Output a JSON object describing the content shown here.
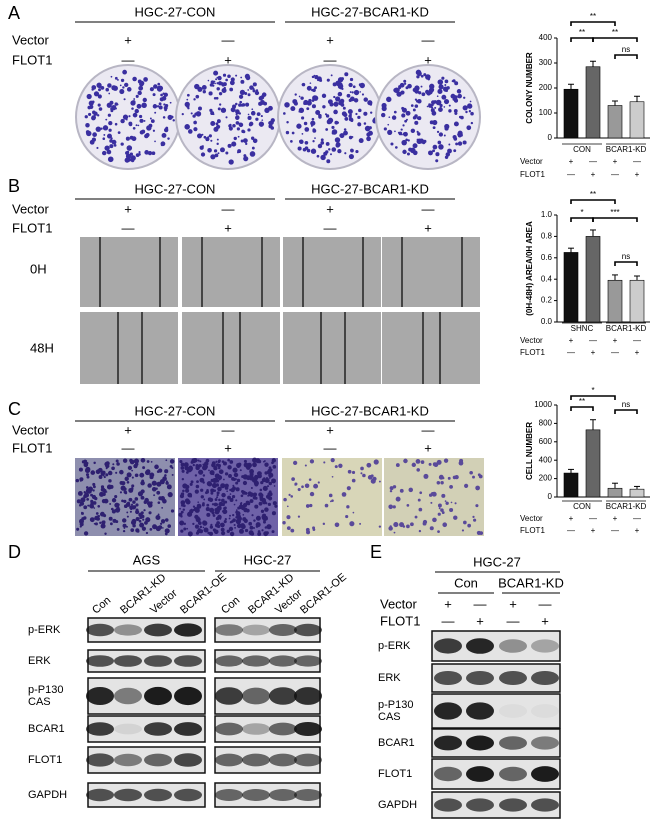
{
  "panel_A": {
    "label": "A",
    "groups": [
      "HGC-27-CON",
      "HGC-27-BCAR1-KD"
    ],
    "conditions": [
      {
        "name": "Vector",
        "marks": [
          "+",
          "—",
          "+",
          "—"
        ]
      },
      {
        "name": "FLOT1",
        "marks": [
          "—",
          "+",
          "—",
          "+"
        ]
      }
    ]
  },
  "panel_B": {
    "label": "B",
    "groups": [
      "HGC-27-CON",
      "HGC-27-BCAR1-KD"
    ],
    "conditions": [
      {
        "name": "Vector",
        "marks": [
          "+",
          "—",
          "+",
          "—"
        ]
      },
      {
        "name": "FLOT1",
        "marks": [
          "—",
          "+",
          "—",
          "+"
        ]
      }
    ],
    "timepoints": [
      "0H",
      "48H"
    ]
  },
  "panel_C": {
    "label": "C",
    "groups": [
      "HGC-27-CON",
      "HGC-27-BCAR1-KD"
    ],
    "conditions": [
      {
        "name": "Vector",
        "marks": [
          "+",
          "—",
          "+",
          "—"
        ]
      },
      {
        "name": "FLOT1",
        "marks": [
          "—",
          "+",
          "—",
          "+"
        ]
      }
    ]
  },
  "panel_D": {
    "label": "D",
    "blots": [
      {
        "title": "AGS",
        "lanes": [
          "Con",
          "BCAR1-KD",
          "Vector",
          "BCAR1-OE"
        ]
      },
      {
        "title": "HGC-27",
        "lanes": [
          "Con",
          "BCAR1-KD",
          "Vector",
          "BCAR1-OE"
        ]
      }
    ],
    "rows": [
      [
        "p-ERK"
      ],
      [
        "ERK"
      ],
      [
        "p-P130",
        "CAS"
      ],
      [
        "BCAR1"
      ],
      [
        "FLOT1"
      ],
      [
        "GAPDH"
      ]
    ]
  },
  "panel_E": {
    "label": "E",
    "title": "HGC-27",
    "groups": [
      "Con",
      "BCAR1-KD"
    ],
    "conditions": [
      {
        "name": "Vector",
        "marks": [
          "+",
          "—",
          "+",
          "—"
        ]
      },
      {
        "name": "FLOT1",
        "marks": [
          "—",
          "+",
          "—",
          "+"
        ]
      }
    ],
    "rows": [
      [
        "p-ERK"
      ],
      [
        "ERK"
      ],
      [
        "p-P130",
        "CAS"
      ],
      [
        "BCAR1"
      ],
      [
        "FLOT1"
      ],
      [
        "GAPDH"
      ]
    ]
  },
  "chart_data": [
    {
      "type": "bar",
      "ylabel": "COLONY NUMBER",
      "ylim": [
        0,
        400
      ],
      "yticks": [
        0,
        100,
        200,
        300,
        400
      ],
      "values": [
        195,
        285,
        130,
        145
      ],
      "errors": [
        20,
        22,
        18,
        22
      ],
      "colors": [
        "#111111",
        "#666666",
        "#999999",
        "#cccccc"
      ],
      "groups": [
        "CON",
        "BCAR1-KD"
      ],
      "conditions": [
        {
          "name": "Vector",
          "marks": [
            "+",
            "—",
            "+",
            "—"
          ]
        },
        {
          "name": "FLOT1",
          "marks": [
            "—",
            "+",
            "—",
            "+"
          ]
        }
      ],
      "annotations": [
        "**",
        "**",
        "ns",
        "**"
      ]
    },
    {
      "type": "bar",
      "ylabel": "(0H-48H) AREA/0H AREA",
      "ylim": [
        0,
        1
      ],
      "yticks": [
        {
          "value": 0,
          "label": "0.0"
        },
        0.2,
        0.4,
        0.6,
        0.8,
        {
          "value": 1,
          "label": "1.0"
        }
      ],
      "values": [
        0.65,
        0.8,
        0.39,
        0.39
      ],
      "errors": [
        0.04,
        0.06,
        0.05,
        0.04
      ],
      "colors": [
        "#111111",
        "#666666",
        "#999999",
        "#cccccc"
      ],
      "groups": [
        "SHNC",
        "BCAR1-KD"
      ],
      "conditions": [
        {
          "name": "Vector",
          "marks": [
            "+",
            "—",
            "+",
            "—"
          ]
        },
        {
          "name": "FLOT1",
          "marks": [
            "—",
            "+",
            "—",
            "+"
          ]
        }
      ],
      "annotations": [
        "**",
        "*",
        "***",
        "ns"
      ]
    },
    {
      "type": "bar",
      "ylabel": "CELL NUMBER",
      "ylim": [
        0,
        1000
      ],
      "yticks": [
        0,
        200,
        400,
        600,
        800,
        1000
      ],
      "values": [
        260,
        730,
        95,
        85
      ],
      "errors": [
        40,
        110,
        55,
        30
      ],
      "colors": [
        "#111111",
        "#666666",
        "#999999",
        "#cccccc"
      ],
      "groups": [
        "CON",
        "BCAR1-KD"
      ],
      "conditions": [
        {
          "name": "Vector",
          "marks": [
            "+",
            "—",
            "+",
            "—"
          ]
        },
        {
          "name": "FLOT1",
          "marks": [
            "—",
            "+",
            "—",
            "+"
          ]
        }
      ],
      "annotations": [
        "*",
        "**",
        "ns"
      ]
    }
  ]
}
